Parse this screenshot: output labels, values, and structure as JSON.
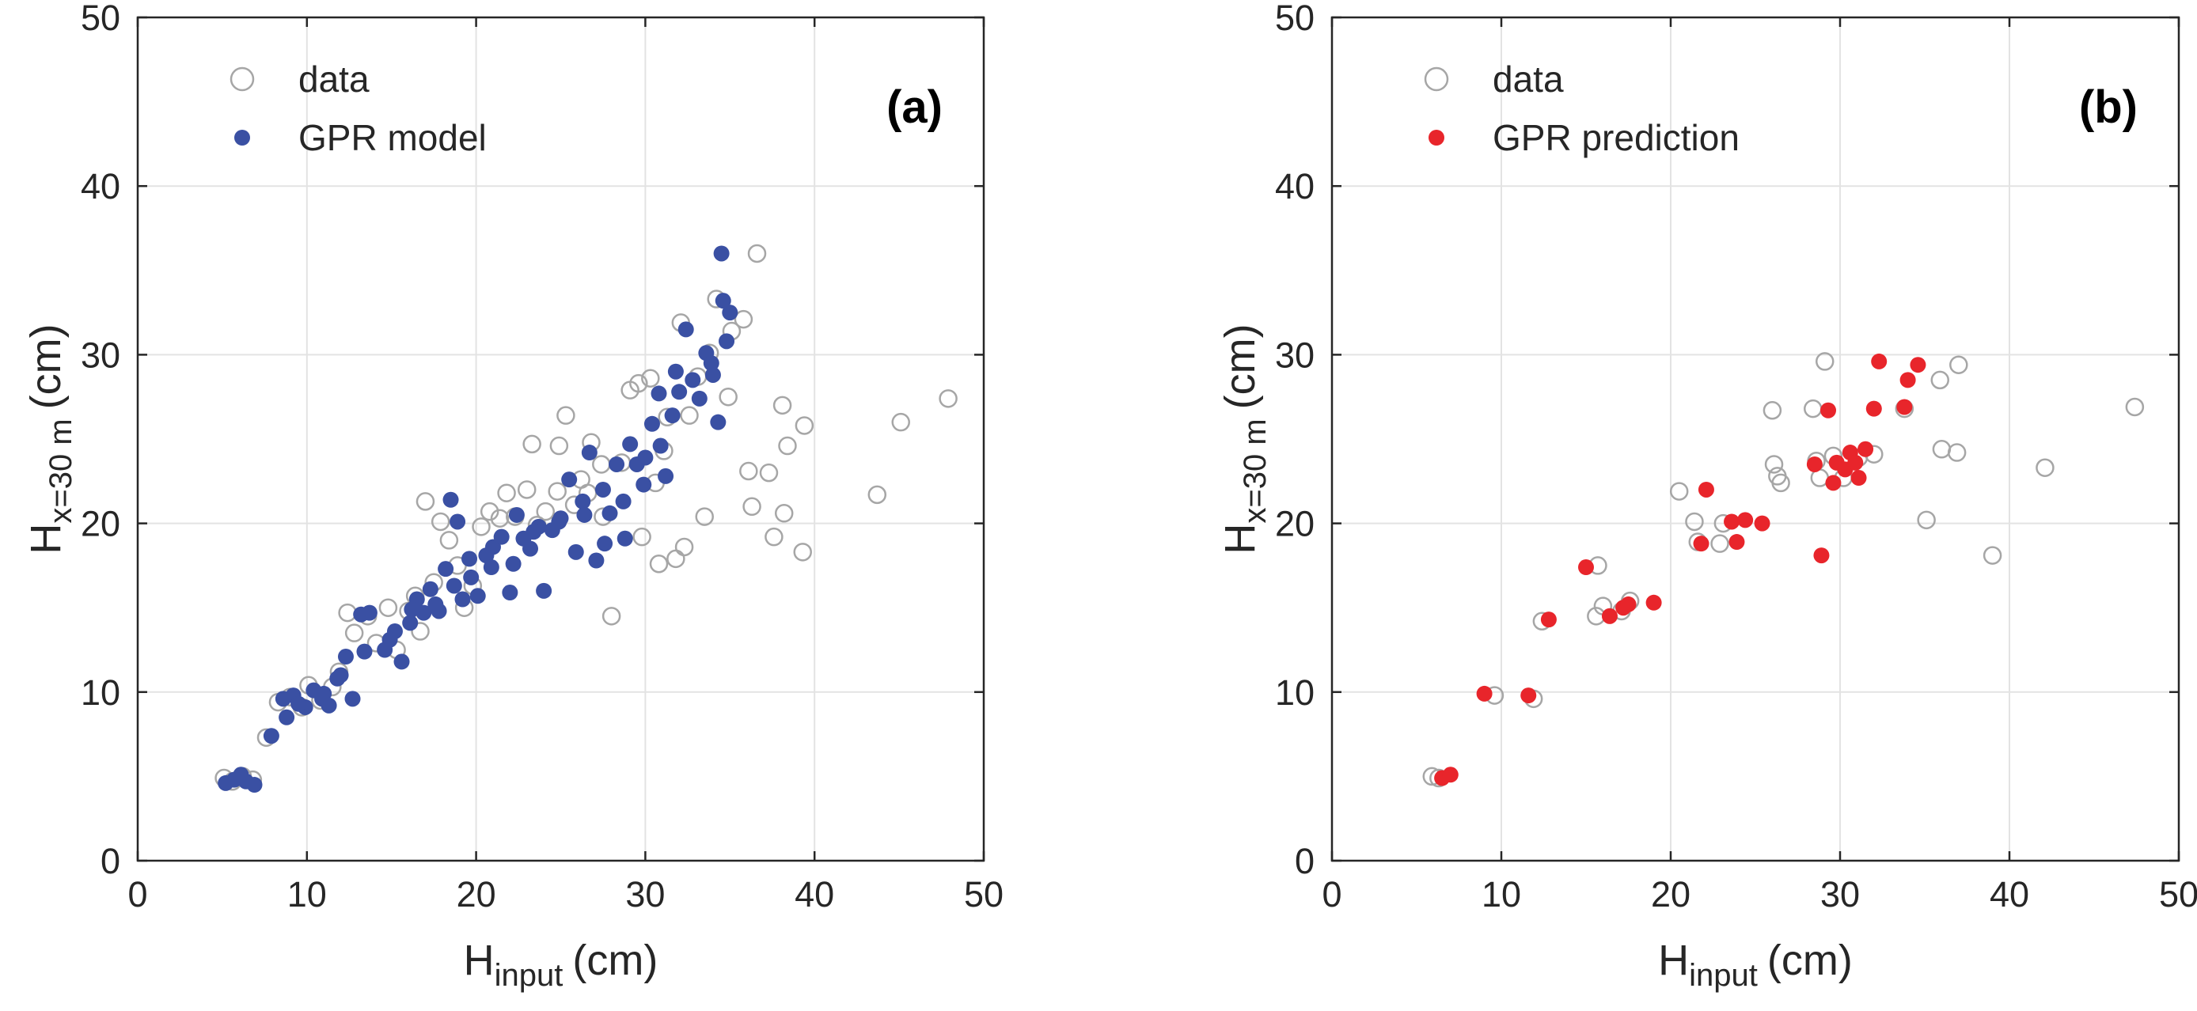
{
  "chart_data": [
    {
      "type": "scatter",
      "panel_label": "(a)",
      "xlabel": {
        "main": "H",
        "sub": "input",
        "unit": "(cm)"
      },
      "ylabel": {
        "main": "H",
        "sub": "x=30 m",
        "unit": "(cm)"
      },
      "xlim": [
        0,
        50
      ],
      "ylim": [
        0,
        50
      ],
      "xticks": [
        "0",
        "10",
        "20",
        "30",
        "40",
        "50"
      ],
      "yticks": [
        "0",
        "10",
        "20",
        "30",
        "40",
        "50"
      ],
      "grid": true,
      "legend_position": "top-left",
      "series": [
        {
          "name": "data",
          "marker": "open-circle",
          "color": "#a6a6a6",
          "points": [
            [
              5.1,
              4.9
            ],
            [
              5.6,
              4.7
            ],
            [
              6.2,
              5.0
            ],
            [
              6.8,
              4.8
            ],
            [
              7.6,
              7.3
            ],
            [
              8.3,
              9.4
            ],
            [
              9.0,
              9.7
            ],
            [
              10.1,
              10.4
            ],
            [
              10.8,
              9.5
            ],
            [
              11.5,
              10.3
            ],
            [
              12.4,
              14.7
            ],
            [
              12.8,
              13.5
            ],
            [
              13.6,
              14.5
            ],
            [
              14.8,
              15.0
            ],
            [
              15.3,
              12.5
            ],
            [
              16.0,
              14.8
            ],
            [
              16.7,
              13.6
            ],
            [
              17.0,
              21.3
            ],
            [
              17.5,
              16.5
            ],
            [
              17.9,
              20.1
            ],
            [
              18.4,
              19.0
            ],
            [
              18.9,
              17.5
            ],
            [
              19.3,
              15.0
            ],
            [
              20.3,
              19.8
            ],
            [
              20.8,
              20.7
            ],
            [
              21.4,
              20.3
            ],
            [
              21.8,
              21.8
            ],
            [
              22.3,
              20.4
            ],
            [
              23.0,
              22.0
            ],
            [
              23.3,
              24.7
            ],
            [
              23.6,
              19.9
            ],
            [
              24.1,
              20.7
            ],
            [
              24.8,
              21.9
            ],
            [
              25.3,
              26.4
            ],
            [
              25.8,
              21.1
            ],
            [
              26.2,
              22.6
            ],
            [
              26.6,
              21.8
            ],
            [
              26.8,
              24.8
            ],
            [
              27.4,
              23.5
            ],
            [
              28.0,
              14.5
            ],
            [
              28.6,
              23.6
            ],
            [
              29.1,
              27.9
            ],
            [
              29.6,
              28.3
            ],
            [
              30.3,
              28.6
            ],
            [
              30.8,
              17.6
            ],
            [
              31.3,
              26.3
            ],
            [
              31.8,
              17.9
            ],
            [
              32.1,
              31.9
            ],
            [
              32.6,
              26.4
            ],
            [
              33.1,
              28.7
            ],
            [
              33.8,
              30.1
            ],
            [
              34.2,
              33.3
            ],
            [
              35.1,
              31.4
            ],
            [
              35.8,
              32.1
            ],
            [
              36.1,
              23.1
            ],
            [
              36.6,
              36.0
            ],
            [
              37.3,
              23.0
            ],
            [
              37.6,
              19.2
            ],
            [
              38.1,
              27.0
            ],
            [
              38.2,
              20.6
            ],
            [
              38.4,
              24.6
            ],
            [
              39.3,
              18.3
            ],
            [
              39.4,
              25.8
            ],
            [
              43.7,
              21.7
            ],
            [
              45.1,
              26.0
            ],
            [
              47.9,
              27.4
            ],
            [
              24.9,
              24.6
            ],
            [
              27.5,
              20.4
            ],
            [
              30.6,
              22.4
            ],
            [
              32.3,
              18.6
            ],
            [
              33.5,
              20.4
            ],
            [
              36.3,
              21.0
            ],
            [
              34.9,
              27.5
            ],
            [
              31.1,
              24.3
            ],
            [
              19.8,
              16.3
            ],
            [
              16.4,
              15.7
            ],
            [
              14.1,
              12.9
            ],
            [
              11.9,
              11.2
            ],
            [
              9.7,
              9.1
            ],
            [
              29.8,
              19.2
            ]
          ]
        },
        {
          "name": "GPR model",
          "marker": "filled-circle",
          "color": "#3a50a3",
          "points": [
            [
              5.2,
              4.6
            ],
            [
              5.7,
              4.8
            ],
            [
              6.1,
              5.1
            ],
            [
              6.4,
              4.7
            ],
            [
              6.9,
              4.5
            ],
            [
              7.9,
              7.4
            ],
            [
              8.6,
              9.6
            ],
            [
              9.2,
              9.8
            ],
            [
              9.9,
              9.1
            ],
            [
              10.4,
              10.1
            ],
            [
              10.9,
              9.6
            ],
            [
              11.3,
              9.2
            ],
            [
              11.8,
              10.8
            ],
            [
              12.3,
              12.1
            ],
            [
              12.7,
              9.6
            ],
            [
              13.2,
              14.6
            ],
            [
              13.7,
              14.7
            ],
            [
              14.6,
              12.5
            ],
            [
              15.2,
              13.6
            ],
            [
              15.6,
              11.8
            ],
            [
              16.1,
              14.1
            ],
            [
              16.5,
              15.5
            ],
            [
              16.9,
              14.7
            ],
            [
              17.3,
              16.1
            ],
            [
              17.8,
              14.8
            ],
            [
              18.2,
              17.3
            ],
            [
              18.5,
              21.4
            ],
            [
              18.9,
              20.1
            ],
            [
              19.2,
              15.5
            ],
            [
              19.6,
              17.9
            ],
            [
              20.1,
              15.7
            ],
            [
              20.6,
              18.1
            ],
            [
              21.0,
              18.6
            ],
            [
              21.5,
              19.2
            ],
            [
              22.0,
              15.9
            ],
            [
              22.4,
              20.5
            ],
            [
              22.8,
              19.1
            ],
            [
              23.2,
              18.5
            ],
            [
              23.7,
              19.8
            ],
            [
              24.0,
              16.0
            ],
            [
              24.5,
              19.6
            ],
            [
              25.0,
              20.3
            ],
            [
              25.5,
              22.6
            ],
            [
              25.9,
              18.3
            ],
            [
              26.3,
              21.3
            ],
            [
              26.7,
              24.2
            ],
            [
              27.1,
              17.8
            ],
            [
              27.5,
              22.0
            ],
            [
              27.9,
              20.6
            ],
            [
              28.3,
              23.5
            ],
            [
              28.7,
              21.3
            ],
            [
              29.1,
              24.7
            ],
            [
              29.5,
              23.5
            ],
            [
              30.0,
              23.9
            ],
            [
              30.4,
              25.9
            ],
            [
              30.8,
              27.7
            ],
            [
              31.2,
              22.8
            ],
            [
              31.6,
              26.4
            ],
            [
              32.0,
              27.8
            ],
            [
              32.4,
              31.5
            ],
            [
              32.8,
              28.5
            ],
            [
              33.2,
              27.4
            ],
            [
              33.6,
              30.1
            ],
            [
              34.0,
              28.8
            ],
            [
              34.3,
              26.0
            ],
            [
              34.5,
              36.0
            ],
            [
              34.8,
              30.8
            ],
            [
              35.0,
              32.5
            ],
            [
              34.6,
              33.2
            ],
            [
              33.9,
              29.5
            ],
            [
              31.8,
              29.0
            ],
            [
              30.9,
              24.6
            ],
            [
              29.9,
              22.3
            ],
            [
              28.8,
              19.1
            ],
            [
              27.6,
              18.8
            ],
            [
              26.4,
              20.5
            ],
            [
              24.9,
              20.1
            ],
            [
              23.4,
              19.5
            ],
            [
              22.2,
              17.6
            ],
            [
              20.9,
              17.4
            ],
            [
              19.7,
              16.8
            ],
            [
              18.7,
              16.3
            ],
            [
              17.6,
              15.2
            ],
            [
              16.2,
              14.9
            ],
            [
              14.9,
              13.1
            ],
            [
              13.4,
              12.4
            ],
            [
              12.0,
              11.0
            ],
            [
              11.0,
              9.9
            ],
            [
              9.5,
              9.3
            ],
            [
              8.8,
              8.5
            ]
          ]
        }
      ]
    },
    {
      "type": "scatter",
      "panel_label": "(b)",
      "xlabel": {
        "main": "H",
        "sub": "input",
        "unit": "(cm)"
      },
      "ylabel": {
        "main": "H",
        "sub": "x=30 m",
        "unit": "(cm)"
      },
      "xlim": [
        0,
        50
      ],
      "ylim": [
        0,
        50
      ],
      "xticks": [
        "0",
        "10",
        "20",
        "30",
        "40",
        "50"
      ],
      "yticks": [
        "0",
        "10",
        "20",
        "30",
        "40",
        "50"
      ],
      "grid": true,
      "legend_position": "top-left",
      "series": [
        {
          "name": "data",
          "marker": "open-circle",
          "color": "#a6a6a6",
          "points": [
            [
              5.9,
              5.0
            ],
            [
              6.3,
              4.9
            ],
            [
              9.6,
              9.8
            ],
            [
              11.9,
              9.6
            ],
            [
              12.4,
              14.2
            ],
            [
              15.7,
              17.5
            ],
            [
              16.0,
              15.1
            ],
            [
              15.6,
              14.5
            ],
            [
              17.1,
              14.8
            ],
            [
              17.6,
              15.4
            ],
            [
              20.5,
              21.9
            ],
            [
              21.4,
              20.1
            ],
            [
              21.6,
              18.9
            ],
            [
              22.9,
              18.8
            ],
            [
              23.1,
              20.0
            ],
            [
              26.0,
              26.7
            ],
            [
              26.1,
              23.5
            ],
            [
              26.3,
              22.8
            ],
            [
              26.5,
              22.4
            ],
            [
              28.4,
              26.8
            ],
            [
              28.6,
              23.7
            ],
            [
              28.8,
              22.7
            ],
            [
              29.1,
              29.6
            ],
            [
              29.6,
              24.0
            ],
            [
              30.2,
              22.7
            ],
            [
              31.1,
              23.9
            ],
            [
              32.0,
              24.1
            ],
            [
              33.8,
              26.8
            ],
            [
              35.1,
              20.2
            ],
            [
              35.9,
              28.5
            ],
            [
              36.0,
              24.4
            ],
            [
              36.9,
              24.2
            ],
            [
              37.0,
              29.4
            ],
            [
              39.0,
              18.1
            ],
            [
              42.1,
              23.3
            ],
            [
              47.4,
              26.9
            ]
          ]
        },
        {
          "name": "GPR prediction",
          "marker": "filled-circle",
          "color": "#e8252b",
          "points": [
            [
              6.5,
              4.9
            ],
            [
              7.0,
              5.1
            ],
            [
              9.0,
              9.9
            ],
            [
              11.6,
              9.8
            ],
            [
              12.8,
              14.3
            ],
            [
              15.0,
              17.4
            ],
            [
              16.4,
              14.5
            ],
            [
              17.2,
              15.0
            ],
            [
              17.5,
              15.2
            ],
            [
              19.0,
              15.3
            ],
            [
              21.8,
              18.8
            ],
            [
              22.1,
              22.0
            ],
            [
              23.6,
              20.1
            ],
            [
              23.9,
              18.9
            ],
            [
              24.4,
              20.2
            ],
            [
              25.4,
              20.0
            ],
            [
              28.5,
              23.5
            ],
            [
              28.9,
              18.1
            ],
            [
              29.3,
              26.7
            ],
            [
              29.6,
              22.4
            ],
            [
              29.8,
              23.6
            ],
            [
              30.3,
              23.2
            ],
            [
              30.6,
              24.2
            ],
            [
              30.9,
              23.6
            ],
            [
              31.1,
              22.7
            ],
            [
              31.5,
              24.4
            ],
            [
              32.0,
              26.8
            ],
            [
              32.3,
              29.6
            ],
            [
              33.8,
              26.9
            ],
            [
              34.0,
              28.5
            ],
            [
              34.6,
              29.4
            ]
          ]
        }
      ]
    }
  ]
}
